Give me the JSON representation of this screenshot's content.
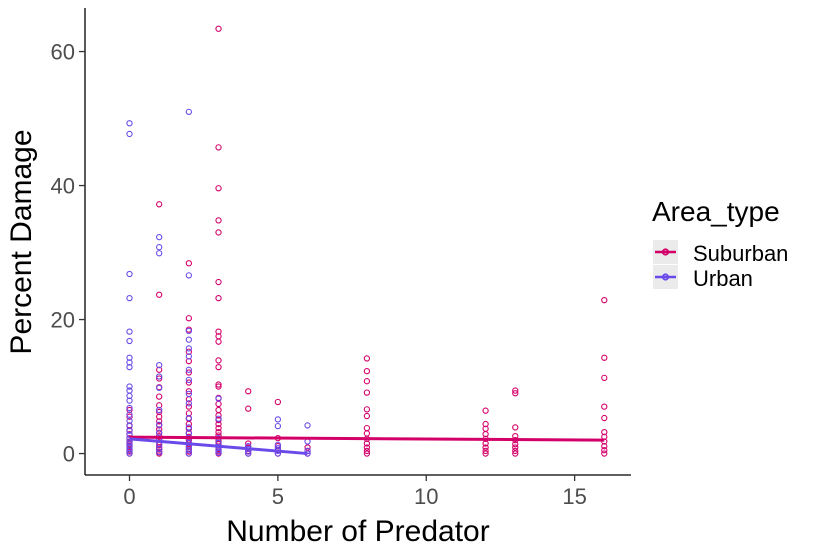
{
  "chart_data": {
    "type": "scatter",
    "title": "",
    "xlabel": "Number of Predator",
    "ylabel": "Percent Damage",
    "xlim": [
      -1.5,
      16.9
    ],
    "ylim": [
      -3.2,
      66.5
    ],
    "x_ticks": [
      0,
      5,
      10,
      15
    ],
    "y_ticks": [
      0,
      20,
      40,
      60
    ],
    "grid": false,
    "legend": {
      "title": "Area_type",
      "position": "right"
    },
    "series": [
      {
        "name": "Suburban",
        "color": "#D4006A",
        "points": [
          [
            0,
            0.0
          ],
          [
            0,
            0.3
          ],
          [
            0,
            0.6
          ],
          [
            0,
            1.0
          ],
          [
            0,
            1.4
          ],
          [
            0,
            1.8
          ],
          [
            0,
            2.3
          ],
          [
            0,
            2.9
          ],
          [
            0,
            3.5
          ],
          [
            0,
            4.2
          ],
          [
            0,
            5.5
          ],
          [
            0,
            6.5
          ],
          [
            1,
            0.0
          ],
          [
            1,
            0.3
          ],
          [
            1,
            0.6
          ],
          [
            1,
            0.9
          ],
          [
            1,
            1.3
          ],
          [
            1,
            1.7
          ],
          [
            1,
            2.1
          ],
          [
            1,
            2.6
          ],
          [
            1,
            3.1
          ],
          [
            1,
            3.6
          ],
          [
            1,
            4.2
          ],
          [
            1,
            4.8
          ],
          [
            1,
            5.5
          ],
          [
            1,
            6.2
          ],
          [
            1,
            7.2
          ],
          [
            1,
            8.5
          ],
          [
            1,
            9.9
          ],
          [
            1,
            11.2
          ],
          [
            1,
            12.5
          ],
          [
            1,
            23.7
          ],
          [
            1,
            37.2
          ],
          [
            2,
            0.0
          ],
          [
            2,
            0.3
          ],
          [
            2,
            0.7
          ],
          [
            2,
            1.1
          ],
          [
            2,
            1.5
          ],
          [
            2,
            2.0
          ],
          [
            2,
            2.5
          ],
          [
            2,
            3.1
          ],
          [
            2,
            3.7
          ],
          [
            2,
            4.4
          ],
          [
            2,
            5.2
          ],
          [
            2,
            6.0
          ],
          [
            2,
            7.0
          ],
          [
            2,
            8.1
          ],
          [
            2,
            9.3
          ],
          [
            2,
            10.6
          ],
          [
            2,
            12.1
          ],
          [
            2,
            13.8
          ],
          [
            2,
            15.2
          ],
          [
            2,
            18.5
          ],
          [
            2,
            20.2
          ],
          [
            2,
            28.4
          ],
          [
            3,
            0.0
          ],
          [
            3,
            0.3
          ],
          [
            3,
            0.6
          ],
          [
            3,
            1.0
          ],
          [
            3,
            1.4
          ],
          [
            3,
            1.8
          ],
          [
            3,
            2.2
          ],
          [
            3,
            2.7
          ],
          [
            3,
            3.2
          ],
          [
            3,
            3.8
          ],
          [
            3,
            4.4
          ],
          [
            3,
            5.0
          ],
          [
            3,
            5.7
          ],
          [
            3,
            6.5
          ],
          [
            3,
            7.4
          ],
          [
            3,
            8.3
          ],
          [
            3,
            10.0
          ],
          [
            3,
            10.3
          ],
          [
            3,
            12.9
          ],
          [
            3,
            13.9
          ],
          [
            3,
            16.7
          ],
          [
            3,
            17.5
          ],
          [
            3,
            18.2
          ],
          [
            3,
            23.2
          ],
          [
            3,
            25.6
          ],
          [
            3,
            33.0
          ],
          [
            3,
            34.8
          ],
          [
            3,
            39.6
          ],
          [
            3,
            45.7
          ],
          [
            3,
            63.4
          ],
          [
            4,
            0.0
          ],
          [
            4,
            0.4
          ],
          [
            4,
            0.9
          ],
          [
            4,
            1.5
          ],
          [
            4,
            6.7
          ],
          [
            4,
            9.3
          ],
          [
            5,
            0.0
          ],
          [
            5,
            0.5
          ],
          [
            5,
            1.1
          ],
          [
            5,
            2.3
          ],
          [
            5,
            7.7
          ],
          [
            6,
            0.0
          ],
          [
            6,
            0.4
          ],
          [
            6,
            0.9
          ],
          [
            8,
            0.0
          ],
          [
            8,
            0.4
          ],
          [
            8,
            0.9
          ],
          [
            8,
            1.5
          ],
          [
            8,
            2.2
          ],
          [
            8,
            3.0
          ],
          [
            8,
            3.8
          ],
          [
            8,
            5.6
          ],
          [
            8,
            6.6
          ],
          [
            8,
            9.1
          ],
          [
            8,
            10.8
          ],
          [
            8,
            12.3
          ],
          [
            8,
            14.2
          ],
          [
            12,
            0.0
          ],
          [
            12,
            0.4
          ],
          [
            12,
            0.9
          ],
          [
            12,
            1.5
          ],
          [
            12,
            2.2
          ],
          [
            12,
            2.9
          ],
          [
            12,
            3.7
          ],
          [
            12,
            4.4
          ],
          [
            12,
            6.4
          ],
          [
            13,
            0.0
          ],
          [
            13,
            0.4
          ],
          [
            13,
            0.9
          ],
          [
            13,
            1.4
          ],
          [
            13,
            2.0
          ],
          [
            13,
            2.6
          ],
          [
            13,
            3.9
          ],
          [
            13,
            9.0
          ],
          [
            13,
            9.4
          ],
          [
            16,
            0.0
          ],
          [
            16,
            0.5
          ],
          [
            16,
            1.1
          ],
          [
            16,
            1.8
          ],
          [
            16,
            2.5
          ],
          [
            16,
            3.2
          ],
          [
            16,
            5.3
          ],
          [
            16,
            7.0
          ],
          [
            16,
            11.3
          ],
          [
            16,
            14.3
          ],
          [
            16,
            22.9
          ]
        ],
        "trend": {
          "x": [
            0,
            16
          ],
          "y": [
            2.45,
            2.0
          ]
        }
      },
      {
        "name": "Urban",
        "color": "#6A4BEA",
        "points": [
          [
            0,
            0.0
          ],
          [
            0,
            0.4
          ],
          [
            0,
            0.8
          ],
          [
            0,
            1.2
          ],
          [
            0,
            1.7
          ],
          [
            0,
            2.2
          ],
          [
            0,
            2.8
          ],
          [
            0,
            3.4
          ],
          [
            0,
            4.1
          ],
          [
            0,
            4.9
          ],
          [
            0,
            5.8
          ],
          [
            0,
            6.8
          ],
          [
            0,
            7.9
          ],
          [
            0,
            8.6
          ],
          [
            0,
            9.4
          ],
          [
            0,
            10.0
          ],
          [
            0,
            12.9
          ],
          [
            0,
            13.6
          ],
          [
            0,
            14.3
          ],
          [
            0,
            16.8
          ],
          [
            0,
            18.2
          ],
          [
            0,
            23.2
          ],
          [
            0,
            26.8
          ],
          [
            0,
            47.7
          ],
          [
            0,
            49.3
          ],
          [
            1,
            0.2
          ],
          [
            1,
            0.7
          ],
          [
            1,
            1.4
          ],
          [
            1,
            2.2
          ],
          [
            1,
            3.1
          ],
          [
            1,
            4.3
          ],
          [
            1,
            6.5
          ],
          [
            1,
            9.8
          ],
          [
            1,
            11.5
          ],
          [
            1,
            13.2
          ],
          [
            1,
            29.9
          ],
          [
            1,
            30.8
          ],
          [
            1,
            32.3
          ],
          [
            2,
            0.0
          ],
          [
            2,
            0.5
          ],
          [
            2,
            1.0
          ],
          [
            2,
            1.6
          ],
          [
            2,
            2.3
          ],
          [
            2,
            3.0
          ],
          [
            2,
            3.9
          ],
          [
            2,
            5.3
          ],
          [
            2,
            7.5
          ],
          [
            2,
            8.9
          ],
          [
            2,
            11.0
          ],
          [
            2,
            12.5
          ],
          [
            2,
            14.5
          ],
          [
            2,
            15.7
          ],
          [
            2,
            17.0
          ],
          [
            2,
            18.3
          ],
          [
            2,
            26.6
          ],
          [
            2,
            51.0
          ],
          [
            3,
            0.1
          ],
          [
            3,
            0.5
          ],
          [
            3,
            1.0
          ],
          [
            3,
            1.6
          ],
          [
            3,
            2.3
          ],
          [
            3,
            5.2
          ],
          [
            3,
            8.2
          ],
          [
            4,
            0.0
          ],
          [
            4,
            0.3
          ],
          [
            4,
            0.7
          ],
          [
            4,
            1.1
          ],
          [
            5,
            0.0
          ],
          [
            5,
            0.4
          ],
          [
            5,
            0.8
          ],
          [
            5,
            1.3
          ],
          [
            5,
            4.1
          ],
          [
            5,
            5.1
          ],
          [
            6,
            0.0
          ],
          [
            6,
            0.4
          ],
          [
            6,
            1.8
          ],
          [
            6,
            4.2
          ]
        ],
        "trend": {
          "x": [
            0,
            6
          ],
          "y": [
            2.2,
            0.0
          ]
        }
      }
    ]
  }
}
